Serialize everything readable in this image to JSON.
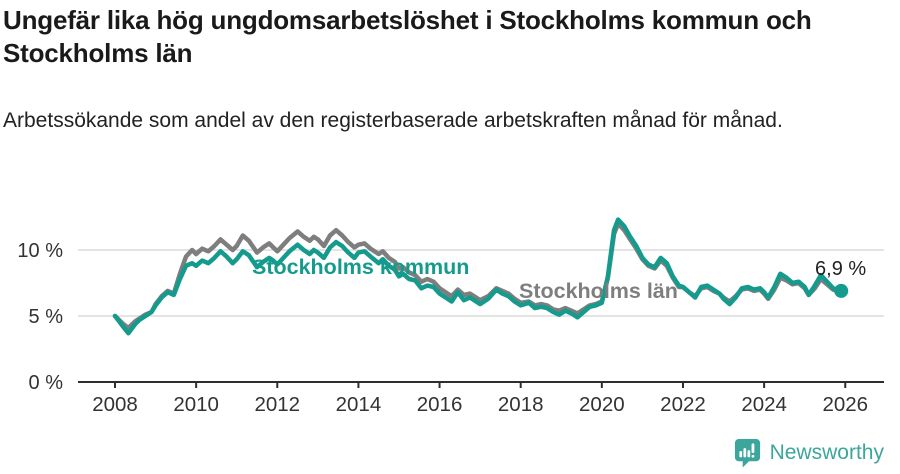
{
  "header": {
    "title": "Ungefär lika hög ungdomsarbetslöshet i Stockholms kommun och Stockholms län",
    "subtitle": "Arbetssökande som andel av den registerbaserade arbetskraften månad för månad."
  },
  "footer": {
    "brand": "Newsworthy",
    "brand_color": "#3da69c",
    "logo_icon": "newsworthy-speech-bubble-barchart-icon"
  },
  "chart_data": {
    "type": "line",
    "title": "Ungefär lika hög ungdomsarbetslöshet i Stockholms kommun och Stockholms län",
    "subtitle": "Arbetssökande som andel av den registerbaserade arbetskraften månad för månad.",
    "xlabel": "",
    "ylabel": "",
    "grid": "horizontal",
    "legend": "inline-labels",
    "xlim": [
      2007.1,
      2026.85
    ],
    "ylim": [
      0,
      13.8
    ],
    "x_ticks": [
      2008,
      2010,
      2012,
      2014,
      2016,
      2018,
      2020,
      2022,
      2024,
      2026
    ],
    "y_ticks": [
      0,
      5,
      10
    ],
    "y_tick_suffix": " %",
    "end_label": "6,9 %",
    "last_point_value": 6.9,
    "colors": {
      "grid": "#dcdcdc",
      "axis": "#2e2e2e",
      "tick_text": "#333333",
      "end_label_text": "#222222"
    },
    "x": [
      2008.0,
      2008.1,
      2008.2,
      2008.33,
      2008.5,
      2008.6,
      2008.75,
      2008.9,
      2009.0,
      2009.15,
      2009.3,
      2009.45,
      2009.6,
      2009.75,
      2009.9,
      2010.0,
      2010.15,
      2010.3,
      2010.45,
      2010.6,
      2010.75,
      2010.9,
      2011.0,
      2011.15,
      2011.3,
      2011.5,
      2011.65,
      2011.8,
      2011.9,
      2012.0,
      2012.15,
      2012.3,
      2012.5,
      2012.65,
      2012.8,
      2012.9,
      2013.0,
      2013.15,
      2013.3,
      2013.45,
      2013.6,
      2013.75,
      2013.9,
      2014.0,
      2014.15,
      2014.3,
      2014.5,
      2014.6,
      2014.75,
      2014.9,
      2015.0,
      2015.1,
      2015.25,
      2015.4,
      2015.55,
      2015.7,
      2015.85,
      2016.0,
      2016.15,
      2016.3,
      2016.45,
      2016.6,
      2016.75,
      2016.9,
      2017.0,
      2017.2,
      2017.4,
      2017.55,
      2017.7,
      2017.85,
      2018.0,
      2018.2,
      2018.35,
      2018.5,
      2018.65,
      2018.8,
      2018.95,
      2019.1,
      2019.25,
      2019.4,
      2019.55,
      2019.7,
      2019.85,
      2020.0,
      2020.15,
      2020.3,
      2020.4,
      2020.55,
      2020.7,
      2020.85,
      2021.0,
      2021.15,
      2021.3,
      2021.45,
      2021.6,
      2021.75,
      2021.9,
      2022.0,
      2022.15,
      2022.3,
      2022.45,
      2022.6,
      2022.75,
      2022.9,
      2023.0,
      2023.15,
      2023.3,
      2023.45,
      2023.6,
      2023.75,
      2023.9,
      2024.0,
      2024.1,
      2024.25,
      2024.4,
      2024.55,
      2024.7,
      2024.85,
      2025.0,
      2025.1,
      2025.25,
      2025.4,
      2025.55,
      2025.7,
      2025.9
    ],
    "series": [
      {
        "name": "Stockholms kommun",
        "color": "#149b8d",
        "values": [
          5.0,
          4.6,
          4.2,
          3.7,
          4.4,
          4.7,
          5.0,
          5.3,
          5.8,
          6.4,
          6.8,
          6.6,
          7.8,
          8.8,
          9.0,
          8.8,
          9.2,
          9.0,
          9.4,
          9.9,
          9.5,
          9.0,
          9.3,
          9.9,
          9.6,
          8.7,
          9.1,
          9.4,
          9.2,
          8.9,
          9.4,
          9.9,
          10.4,
          10.0,
          9.7,
          10.0,
          9.8,
          9.4,
          10.2,
          10.6,
          10.3,
          9.8,
          9.4,
          9.8,
          9.9,
          9.5,
          9.0,
          9.3,
          8.8,
          8.5,
          8.0,
          8.2,
          7.8,
          7.7,
          7.1,
          7.3,
          7.2,
          6.7,
          6.4,
          6.1,
          6.8,
          6.2,
          6.4,
          6.1,
          5.9,
          6.3,
          7.0,
          6.7,
          6.5,
          6.1,
          5.8,
          6.0,
          5.6,
          5.7,
          5.6,
          5.3,
          5.1,
          5.4,
          5.2,
          4.9,
          5.3,
          5.7,
          5.8,
          6.0,
          8.0,
          11.5,
          12.3,
          11.8,
          11.0,
          10.3,
          9.4,
          8.9,
          8.7,
          9.4,
          9.0,
          8.0,
          7.3,
          7.2,
          6.8,
          6.4,
          7.2,
          7.3,
          7.0,
          6.7,
          6.3,
          5.9,
          6.4,
          7.1,
          7.2,
          7.0,
          7.1,
          6.8,
          6.4,
          7.2,
          8.2,
          7.9,
          7.5,
          7.6,
          7.2,
          6.6,
          7.3,
          8.1,
          7.6,
          7.1,
          6.9
        ]
      },
      {
        "name": "Stockholms län",
        "color": "#7e7e7e",
        "values": [
          5.0,
          4.7,
          4.4,
          4.1,
          4.6,
          4.8,
          5.1,
          5.3,
          5.9,
          6.5,
          6.9,
          6.7,
          8.2,
          9.5,
          10.0,
          9.7,
          10.1,
          9.9,
          10.3,
          10.8,
          10.4,
          10.0,
          10.3,
          11.1,
          10.7,
          9.8,
          10.2,
          10.5,
          10.2,
          9.9,
          10.4,
          10.9,
          11.4,
          11.0,
          10.7,
          11.0,
          10.8,
          10.3,
          11.1,
          11.5,
          11.1,
          10.6,
          10.2,
          10.4,
          10.5,
          10.1,
          9.7,
          9.9,
          9.4,
          9.1,
          8.6,
          8.7,
          8.3,
          8.1,
          7.6,
          7.8,
          7.6,
          7.1,
          6.8,
          6.5,
          7.0,
          6.6,
          6.7,
          6.4,
          6.2,
          6.5,
          7.1,
          6.9,
          6.7,
          6.3,
          6.0,
          6.1,
          5.8,
          5.9,
          5.8,
          5.5,
          5.4,
          5.6,
          5.4,
          5.2,
          5.5,
          5.8,
          5.9,
          6.1,
          7.9,
          11.2,
          12.0,
          11.5,
          10.8,
          10.1,
          9.3,
          8.8,
          8.6,
          9.2,
          8.8,
          7.9,
          7.2,
          7.2,
          6.8,
          6.5,
          7.1,
          7.2,
          6.9,
          6.7,
          6.4,
          6.1,
          6.5,
          7.0,
          7.1,
          6.9,
          7.0,
          6.7,
          6.3,
          7.0,
          7.9,
          7.7,
          7.4,
          7.5,
          7.1,
          6.6,
          7.1,
          7.8,
          7.4,
          7.0,
          6.8
        ]
      }
    ]
  }
}
